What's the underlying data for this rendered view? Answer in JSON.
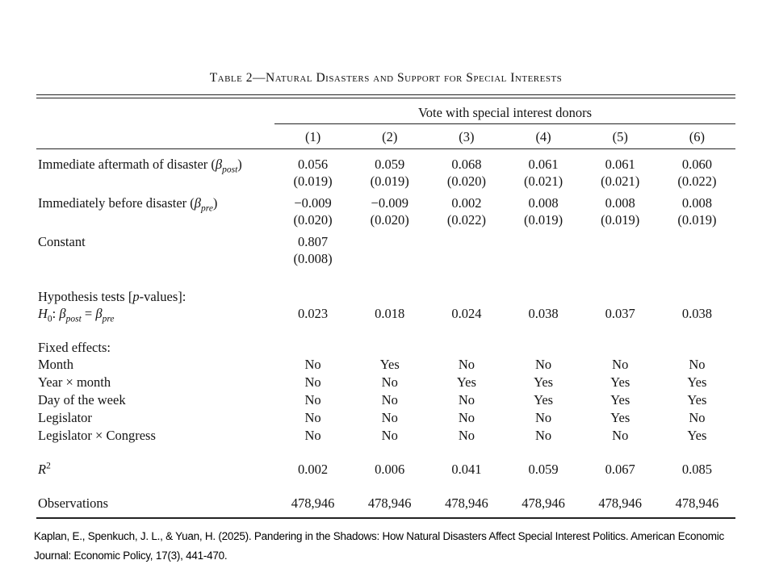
{
  "title": "Table 2—Natural Disasters and Support for Special Interests",
  "header": {
    "span_label": "Vote with special interest donors",
    "columns": [
      "(1)",
      "(2)",
      "(3)",
      "(4)",
      "(5)",
      "(6)"
    ]
  },
  "chart_data": {
    "type": "table",
    "title": "Table 2—Natural Disasters and Support for Special Interests",
    "dependent_variable": "Vote with special interest donors",
    "columns": [
      "(1)",
      "(2)",
      "(3)",
      "(4)",
      "(5)",
      "(6)"
    ]
  },
  "table": {
    "rows": [
      {
        "type": "coef",
        "label": [
          {
            "t": "Immediate aftermath of disaster ("
          },
          {
            "t": "β",
            "i": 1
          },
          {
            "t": "post",
            "i": 1,
            "sub": 1
          },
          {
            "t": ")"
          }
        ],
        "values": [
          "0.056",
          "0.059",
          "0.068",
          "0.061",
          "0.061",
          "0.060"
        ],
        "se": [
          "(0.019)",
          "(0.019)",
          "(0.020)",
          "(0.021)",
          "(0.021)",
          "(0.022)"
        ]
      },
      {
        "type": "coef",
        "label": [
          {
            "t": "Immediately before disaster ("
          },
          {
            "t": "β",
            "i": 1
          },
          {
            "t": "pre",
            "i": 1,
            "sub": 1
          },
          {
            "t": ")"
          }
        ],
        "values": [
          "−0.009",
          "−0.009",
          "0.002",
          "0.008",
          "0.008",
          "0.008"
        ],
        "se": [
          "(0.020)",
          "(0.020)",
          "(0.022)",
          "(0.019)",
          "(0.019)",
          "(0.019)"
        ]
      },
      {
        "type": "coef",
        "label": [
          {
            "t": "Constant"
          }
        ],
        "values": [
          "0.807",
          "",
          "",
          "",
          "",
          ""
        ],
        "se": [
          "(0.008)",
          "",
          "",
          "",
          "",
          ""
        ]
      },
      {
        "type": "spacer"
      },
      {
        "type": "section",
        "label": [
          {
            "t": "Hypothesis tests ["
          },
          {
            "t": "p",
            "i": 1
          },
          {
            "t": "-values]:"
          }
        ]
      },
      {
        "type": "vals",
        "label": [
          {
            "t": "H",
            "i": 1
          },
          {
            "t": "0",
            "sub": 1
          },
          {
            "t": ": "
          },
          {
            "t": "β",
            "i": 1
          },
          {
            "t": "post",
            "i": 1,
            "sub": 1
          },
          {
            "t": " = "
          },
          {
            "t": "β",
            "i": 1
          },
          {
            "t": "pre",
            "i": 1,
            "sub": 1
          }
        ],
        "values": [
          "0.023",
          "0.018",
          "0.024",
          "0.038",
          "0.037",
          "0.038"
        ]
      },
      {
        "type": "spacer"
      },
      {
        "type": "section",
        "label": [
          {
            "t": "Fixed effects:"
          }
        ]
      },
      {
        "type": "vals",
        "label": [
          {
            "t": "Month"
          }
        ],
        "values": [
          "No",
          "Yes",
          "No",
          "No",
          "No",
          "No"
        ]
      },
      {
        "type": "vals",
        "label": [
          {
            "t": "Year × month"
          }
        ],
        "values": [
          "No",
          "No",
          "Yes",
          "Yes",
          "Yes",
          "Yes"
        ]
      },
      {
        "type": "vals",
        "label": [
          {
            "t": "Day of the week"
          }
        ],
        "values": [
          "No",
          "No",
          "No",
          "Yes",
          "Yes",
          "Yes"
        ]
      },
      {
        "type": "vals",
        "label": [
          {
            "t": "Legislator"
          }
        ],
        "values": [
          "No",
          "No",
          "No",
          "No",
          "Yes",
          "No"
        ]
      },
      {
        "type": "vals",
        "label": [
          {
            "t": "Legislator × Congress"
          }
        ],
        "values": [
          "No",
          "No",
          "No",
          "No",
          "No",
          "Yes"
        ]
      },
      {
        "type": "spacer"
      },
      {
        "type": "vals",
        "label": [
          {
            "t": "R",
            "i": 1
          },
          {
            "t": "2",
            "sup": 1
          }
        ],
        "values": [
          "0.002",
          "0.006",
          "0.041",
          "0.059",
          "0.067",
          "0.085"
        ]
      },
      {
        "type": "spacer"
      },
      {
        "type": "vals",
        "label": [
          {
            "t": "Observations"
          }
        ],
        "values": [
          "478,946",
          "478,946",
          "478,946",
          "478,946",
          "478,946",
          "478,946"
        ]
      }
    ]
  },
  "citation": {
    "line1": "Kaplan, E., Spenkuch, J. L., & Yuan, H. (2025). Pandering in the Shadows: How Natural Disasters Affect Special Interest Politics. American Economic",
    "line2": "Journal: Economic Policy, 17(3), 441-470."
  }
}
